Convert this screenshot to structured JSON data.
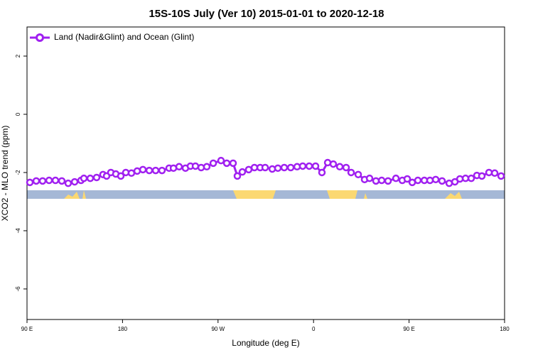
{
  "chart_data": {
    "type": "line",
    "title": "15S-10S July (Ver 10)   2015-01-01 to 2020-12-18",
    "x_label": "Longitude (deg E)",
    "y_label": "XCO2 - MLO trend (ppm)",
    "xlim": [
      90,
      540
    ],
    "ylim": [
      -7.05,
      3.0
    ],
    "xticks": [
      {
        "value": 90,
        "label": "90 E"
      },
      {
        "value": 180,
        "label": "180"
      },
      {
        "value": 270,
        "label": "90 W"
      },
      {
        "value": 360,
        "label": "0"
      },
      {
        "value": 450,
        "label": "90 E"
      },
      {
        "value": 540,
        "label": "180"
      }
    ],
    "yticks": [
      2,
      0,
      -2,
      -4,
      -6
    ],
    "legend_position": "top-left",
    "x": [
      92.7,
      98.7,
      104.7,
      110.8,
      116.8,
      122.8,
      128.8,
      134.9,
      140.9,
      143.6,
      149.6,
      155.6,
      161.6,
      165,
      169,
      173.7,
      178.4,
      183.1,
      188.4,
      193.8,
      199.2,
      205.2,
      211.2,
      217.2,
      223.9,
      228,
      233.3,
      239.3,
      244,
      248.7,
      254.1,
      259.4,
      265.5,
      272.8,
      278.2,
      284.2,
      288.2,
      292.9,
      298.9,
      304.3,
      309.7,
      314.4,
      321.1,
      326.4,
      332.4,
      338.5,
      344.5,
      349.8,
      355.9,
      361.9,
      367.9,
      373.3,
      378.6,
      384.7,
      390.7,
      395.4,
      402.1,
      408.1,
      412.8,
      418.8,
      424.2,
      430.2,
      437.6,
      443.6,
      448.3,
      453,
      458.3,
      464.4,
      469.7,
      475.1,
      481.1,
      487.8,
      493.2,
      497.9,
      503.2,
      508.6,
      513.9,
      518.6,
      525.3,
      530.7,
      536.7
    ],
    "series": [
      {
        "name": "Land (Nadir&Glint) and Ocean (Glint)",
        "color": "#a020f0",
        "values": [
          -2.34,
          -2.29,
          -2.29,
          -2.27,
          -2.27,
          -2.29,
          -2.37,
          -2.32,
          -2.27,
          -2.2,
          -2.2,
          -2.17,
          -2.07,
          -2.12,
          -2.0,
          -2.05,
          -2.12,
          -2.0,
          -2.02,
          -1.95,
          -1.9,
          -1.93,
          -1.93,
          -1.93,
          -1.85,
          -1.85,
          -1.8,
          -1.85,
          -1.78,
          -1.78,
          -1.83,
          -1.8,
          -1.68,
          -1.59,
          -1.68,
          -1.68,
          -2.12,
          -1.98,
          -1.9,
          -1.83,
          -1.83,
          -1.83,
          -1.88,
          -1.85,
          -1.83,
          -1.83,
          -1.8,
          -1.78,
          -1.78,
          -1.78,
          -2.0,
          -1.66,
          -1.71,
          -1.8,
          -1.83,
          -2.0,
          -2.07,
          -2.24,
          -2.2,
          -2.29,
          -2.27,
          -2.29,
          -2.2,
          -2.27,
          -2.22,
          -2.34,
          -2.27,
          -2.27,
          -2.27,
          -2.24,
          -2.29,
          -2.37,
          -2.32,
          -2.22,
          -2.2,
          -2.2,
          -2.1,
          -2.12,
          -2.0,
          -2.02,
          -2.12
        ]
      }
    ]
  }
}
